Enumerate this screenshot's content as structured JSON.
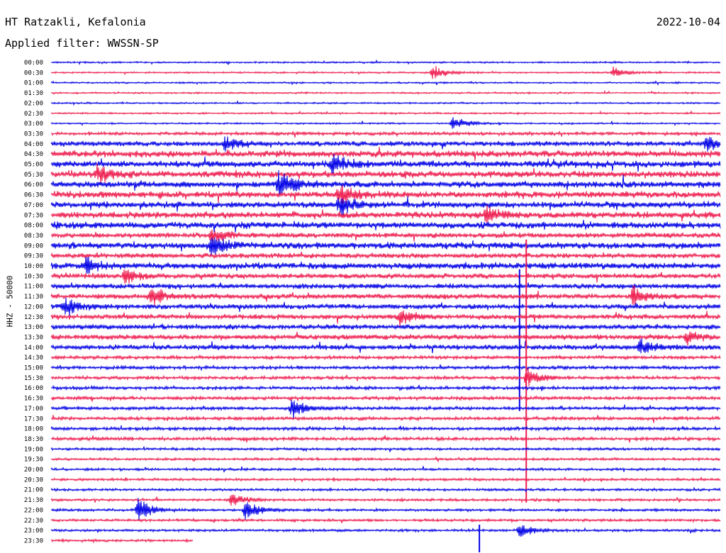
{
  "header": {
    "station": "HT Ratzakli, Kefalonia",
    "date": "2022-10-04",
    "filter": "Applied filter: WWSSN-SP"
  },
  "chart_data": {
    "type": "line",
    "title": "HT Ratzakli, Kefalonia",
    "subtitle": "Applied filter: WWSSN-SP",
    "ylabel": "HHZ - 50000",
    "xlabel": "",
    "grid": false,
    "colors": [
      "#0000e6",
      "#ee1c4e"
    ],
    "row_labels": [
      "00:00",
      "00:30",
      "01:00",
      "01:30",
      "02:00",
      "02:30",
      "03:00",
      "03:30",
      "04:00",
      "04:30",
      "05:00",
      "05:30",
      "06:00",
      "06:30",
      "07:00",
      "07:30",
      "08:00",
      "08:30",
      "09:00",
      "09:30",
      "10:00",
      "10:30",
      "11:00",
      "11:30",
      "12:00",
      "12:30",
      "13:00",
      "13:30",
      "14:00",
      "14:30",
      "15:00",
      "15:30",
      "16:00",
      "16:30",
      "17:00",
      "17:30",
      "18:00",
      "18:30",
      "19:00",
      "19:30",
      "20:00",
      "20:30",
      "21:00",
      "21:30",
      "22:00",
      "22:30",
      "23:00",
      "23:30"
    ],
    "noise_level": [
      1,
      1,
      1,
      1,
      1,
      1,
      1,
      2,
      3,
      4,
      4,
      4,
      4,
      4,
      4,
      4,
      4,
      3,
      4,
      3,
      4,
      3,
      3,
      3,
      3,
      3,
      3,
      3,
      3,
      2,
      2,
      2,
      2,
      2,
      2,
      2,
      2,
      2,
      1.5,
      1.5,
      1.5,
      1.5,
      1.5,
      1.5,
      1.5,
      1.5,
      1.5,
      1.5
    ],
    "events": [
      {
        "row": 1,
        "at": 0.57,
        "amp": 12
      },
      {
        "row": 1,
        "at": 0.84,
        "amp": 8
      },
      {
        "row": 6,
        "at": 0.6,
        "amp": 12
      },
      {
        "row": 8,
        "at": 0.26,
        "amp": 14
      },
      {
        "row": 8,
        "at": 0.98,
        "amp": 16
      },
      {
        "row": 10,
        "at": 0.42,
        "amp": 20
      },
      {
        "row": 11,
        "at": 0.07,
        "amp": 18
      },
      {
        "row": 12,
        "at": 0.34,
        "amp": 24
      },
      {
        "row": 13,
        "at": 0.43,
        "amp": 18
      },
      {
        "row": 14,
        "at": 0.43,
        "amp": 16
      },
      {
        "row": 15,
        "at": 0.65,
        "amp": 16
      },
      {
        "row": 17,
        "at": 0.24,
        "amp": 16
      },
      {
        "row": 18,
        "at": 0.24,
        "amp": 18
      },
      {
        "row": 20,
        "at": 0.05,
        "amp": 14
      },
      {
        "row": 21,
        "at": 0.11,
        "amp": 14
      },
      {
        "row": 23,
        "at": 0.15,
        "amp": 16
      },
      {
        "row": 23,
        "at": 0.87,
        "amp": 16
      },
      {
        "row": 24,
        "at": 0.02,
        "amp": 16
      },
      {
        "row": 25,
        "at": 0.52,
        "amp": 14
      },
      {
        "row": 27,
        "at": 0.95,
        "amp": 14
      },
      {
        "row": 28,
        "at": 0.88,
        "amp": 14
      },
      {
        "row": 31,
        "at": 0.71,
        "amp": 18
      },
      {
        "row": 34,
        "at": 0.36,
        "amp": 18
      },
      {
        "row": 44,
        "at": 0.13,
        "amp": 22
      },
      {
        "row": 44,
        "at": 0.29,
        "amp": 20
      },
      {
        "row": 43,
        "at": 0.27,
        "amp": 12
      },
      {
        "row": 46,
        "at": 0.7,
        "amp": 12
      }
    ],
    "spikes": [
      {
        "row": 22,
        "at": 0.7,
        "up": 24,
        "down": 176
      },
      {
        "row": 31,
        "at": 0.71,
        "up": 195,
        "down": 176
      },
      {
        "row": 46,
        "at": 0.64,
        "up": 8,
        "down": 32
      }
    ]
  }
}
